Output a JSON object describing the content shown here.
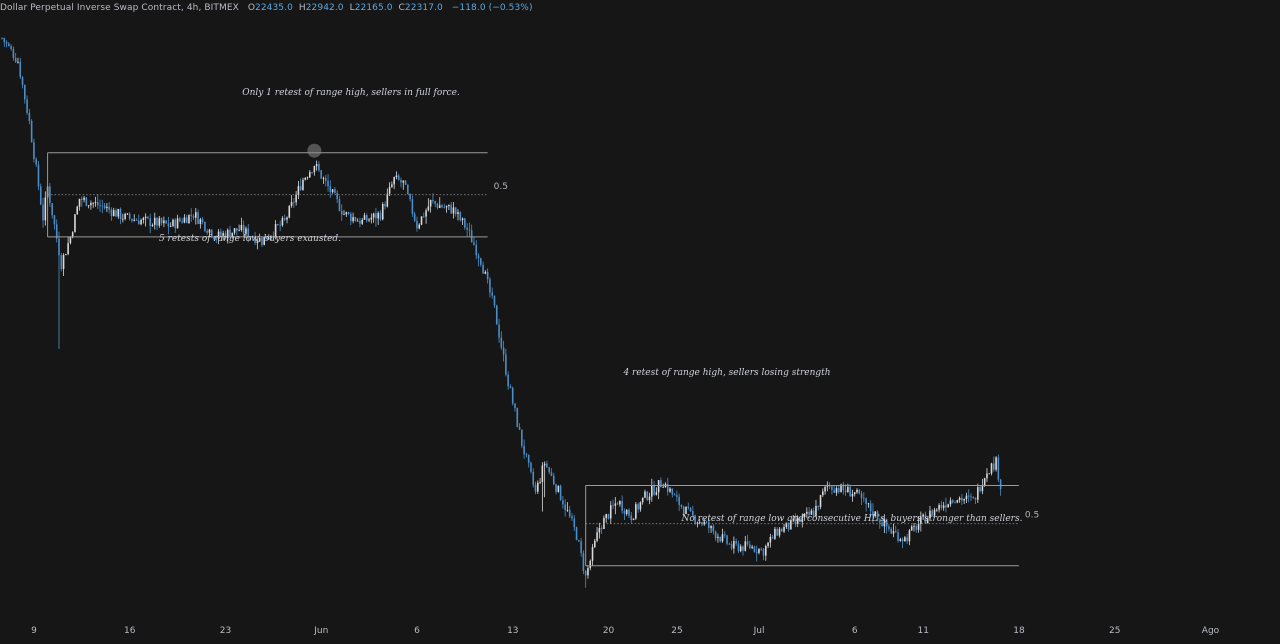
{
  "legend": {
    "title": "Dollar Perpetual Inverse Swap Contract, 4h, BITMEX",
    "o_label": "O",
    "o_value": "22435.0",
    "h_label": "H",
    "h_value": "22942.0",
    "l_label": "L",
    "l_value": "22165.0",
    "c_label": "C",
    "c_value": "22317.0",
    "change": "−118.0 (−0.53%)"
  },
  "colors": {
    "background": "#161616",
    "candle_up": "#d9d9d9",
    "candle_down": "#4c8ec9",
    "range_line": "#9a9a9a",
    "text": "#b9bcc4",
    "accent": "#5fa8e0"
  },
  "chart_data": {
    "type": "candlestick",
    "interval": "4h",
    "symbol": "Dollar Perpetual Inverse Swap Contract",
    "exchange": "BITMEX",
    "x_tick_labels": [
      "9",
      "16",
      "23",
      "Jun",
      "6",
      "13",
      "20",
      "25",
      "Jul",
      "6",
      "11",
      "18",
      "25",
      "Ago"
    ],
    "x_tick_index": [
      0,
      42,
      84,
      126,
      168,
      210,
      252,
      282,
      318,
      360,
      390,
      432,
      474,
      516
    ],
    "y_range": [
      17000,
      33000
    ],
    "price_path_anchors": [
      [
        0,
        32400
      ],
      [
        7,
        31800
      ],
      [
        12,
        30200
      ],
      [
        18,
        27700
      ],
      [
        20,
        28500
      ],
      [
        26,
        26500
      ],
      [
        30,
        27200
      ],
      [
        34,
        28200
      ],
      [
        44,
        28000
      ],
      [
        54,
        27700
      ],
      [
        64,
        27600
      ],
      [
        74,
        27500
      ],
      [
        84,
        27800
      ],
      [
        94,
        27200
      ],
      [
        104,
        27400
      ],
      [
        114,
        27100
      ],
      [
        124,
        27600
      ],
      [
        132,
        28700
      ],
      [
        137,
        29100
      ],
      [
        144,
        28400
      ],
      [
        150,
        27800
      ],
      [
        158,
        27600
      ],
      [
        166,
        27800
      ],
      [
        172,
        28700
      ],
      [
        176,
        28600
      ],
      [
        182,
        27500
      ],
      [
        188,
        28100
      ],
      [
        198,
        27900
      ],
      [
        204,
        27400
      ],
      [
        210,
        26600
      ],
      [
        216,
        25300
      ],
      [
        222,
        23400
      ],
      [
        228,
        21800
      ],
      [
        234,
        20500
      ],
      [
        238,
        21300
      ],
      [
        246,
        20300
      ],
      [
        252,
        19400
      ],
      [
        256,
        18300
      ],
      [
        262,
        19600
      ],
      [
        270,
        20300
      ],
      [
        276,
        19900
      ],
      [
        282,
        20400
      ],
      [
        290,
        20800
      ],
      [
        296,
        20300
      ],
      [
        302,
        19900
      ],
      [
        308,
        19700
      ],
      [
        314,
        19400
      ],
      [
        320,
        19100
      ],
      [
        328,
        19100
      ],
      [
        334,
        19000
      ],
      [
        340,
        19500
      ],
      [
        348,
        19700
      ],
      [
        356,
        20000
      ],
      [
        362,
        20700
      ],
      [
        368,
        20600
      ],
      [
        374,
        20500
      ],
      [
        382,
        20000
      ],
      [
        390,
        19500
      ],
      [
        396,
        19300
      ],
      [
        402,
        19700
      ],
      [
        410,
        20100
      ],
      [
        418,
        20400
      ],
      [
        426,
        20300
      ],
      [
        432,
        21100
      ],
      [
        436,
        21300
      ],
      [
        438,
        20700
      ]
    ],
    "ranges": [
      {
        "name": "range-1",
        "high": 29400,
        "mid": 28300,
        "low": 27200,
        "mid_label": "0.5",
        "start_index": 20,
        "end_index": 213
      },
      {
        "name": "range-2",
        "high": 20700,
        "mid": 19700,
        "low": 18600,
        "mid_label": "0.5",
        "start_index": 256,
        "end_index": 446
      }
    ],
    "annotations": [
      {
        "id": "ann-range1-high",
        "text": "Only 1 retest of range high, sellers in full force."
      },
      {
        "id": "ann-range1-low",
        "text": "5 retests of range low, buyers exausted."
      },
      {
        "id": "ann-range2-high",
        "text": "4 retest of range high, sellers losing strength"
      },
      {
        "id": "ann-range2-low",
        "text": "No retest of range low and consecutive HL's, buyers stronger than sellers."
      }
    ],
    "marker": {
      "index": 137,
      "price": 29400
    }
  }
}
